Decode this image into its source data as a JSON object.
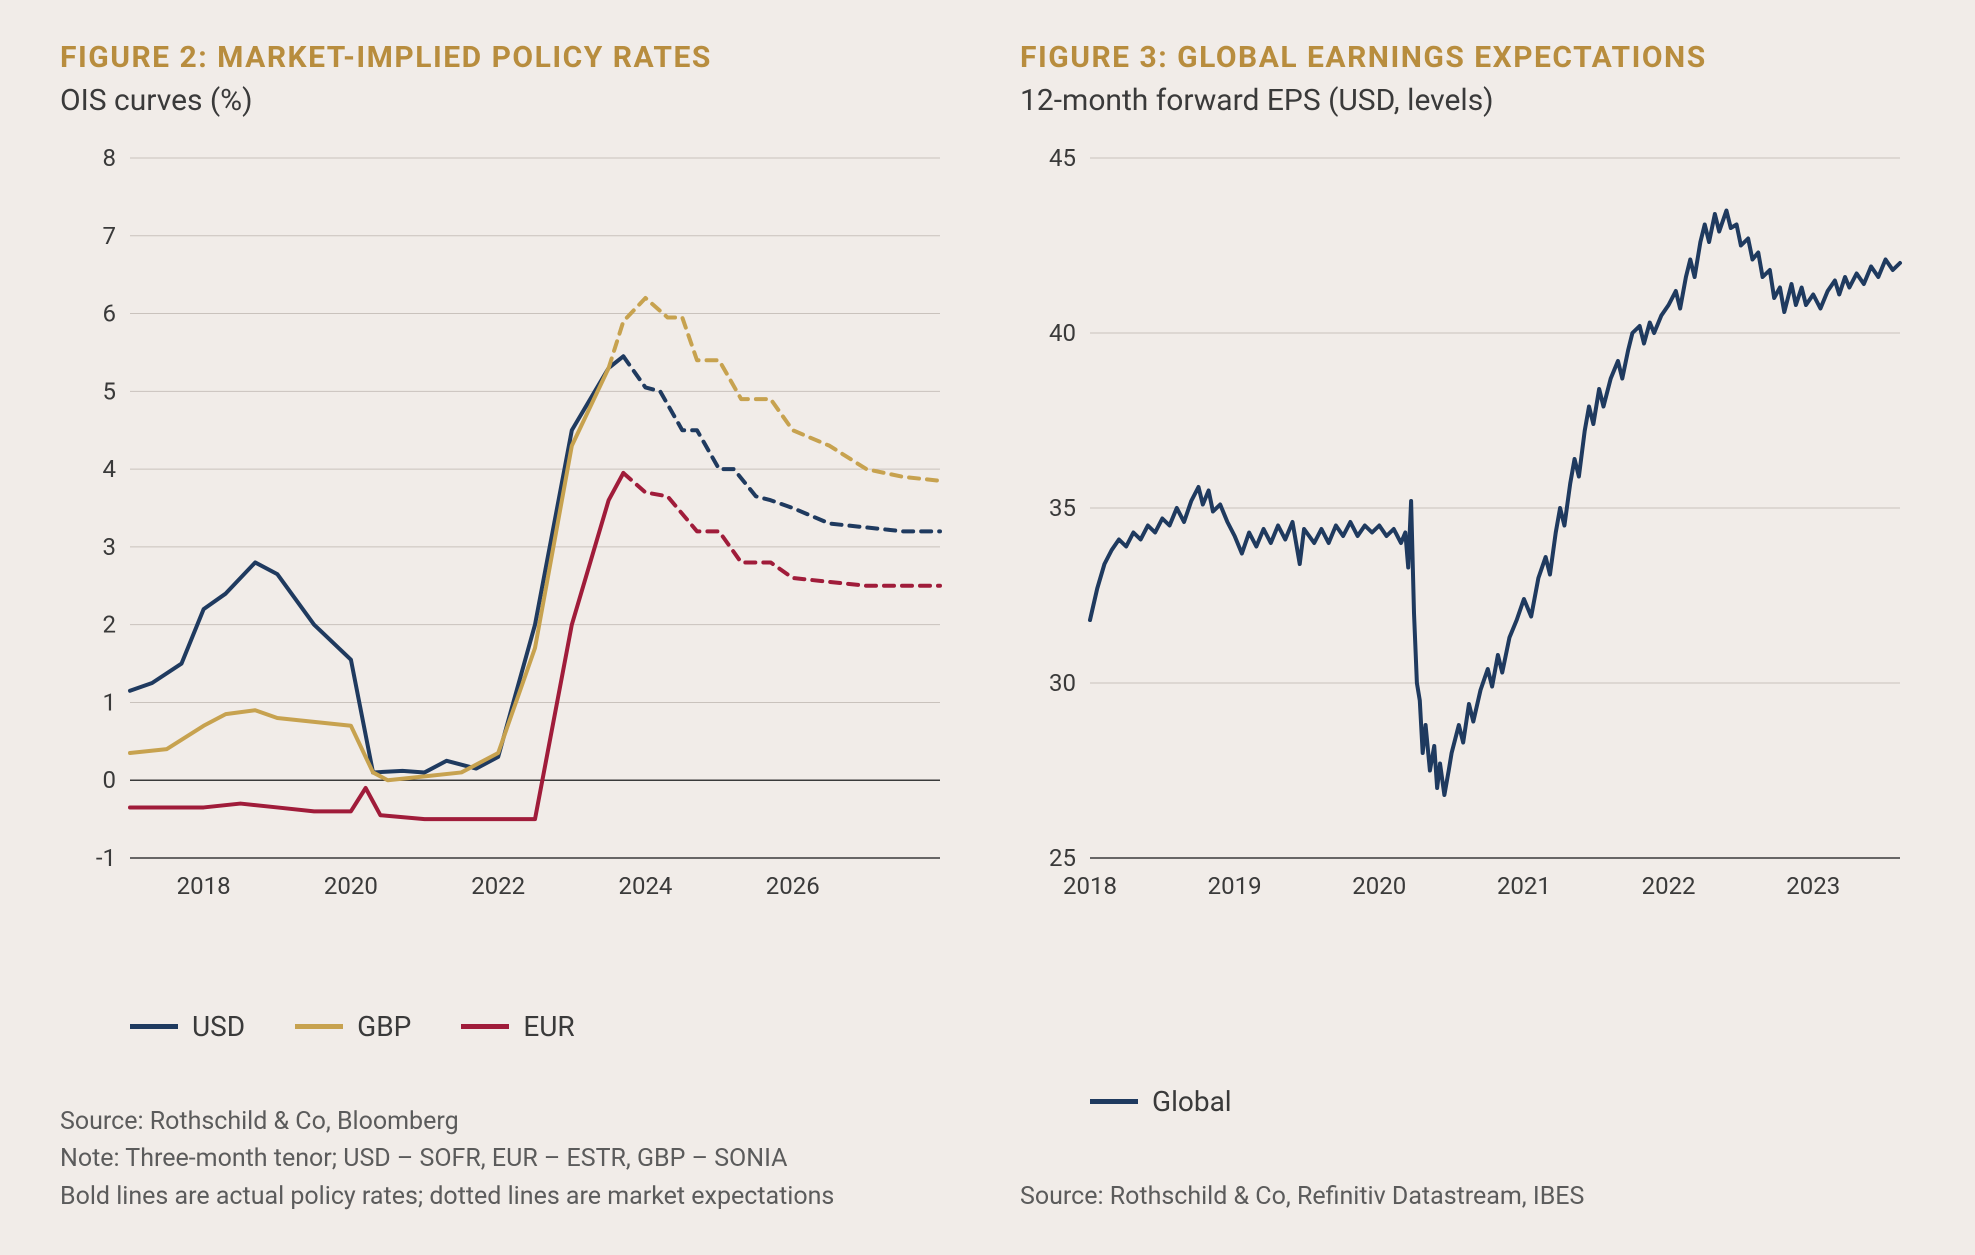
{
  "background_color": "#f1ece8",
  "title_color": "#b88d3e",
  "text_color": "#3a3a3a",
  "footnote_color": "#5b5b5b",
  "grid_color": "#c9c2bc",
  "figure2": {
    "title": "FIGURE 2: MARKET-IMPLIED POLICY RATES",
    "subtitle": "OIS curves (%)",
    "type": "line",
    "ylim": [
      -1,
      8
    ],
    "ytick_step": 1,
    "yticks": [
      -1,
      0,
      1,
      2,
      3,
      4,
      5,
      6,
      7,
      8
    ],
    "xlim": [
      2017,
      2028
    ],
    "xticks": [
      2018,
      2020,
      2022,
      2024,
      2026
    ],
    "line_width": 4,
    "dash_pattern": "10 8",
    "series": [
      {
        "label": "USD",
        "color": "#1f3a5f",
        "solid": [
          [
            2017.0,
            1.15
          ],
          [
            2017.3,
            1.25
          ],
          [
            2017.7,
            1.5
          ],
          [
            2018.0,
            2.2
          ],
          [
            2018.3,
            2.4
          ],
          [
            2018.7,
            2.8
          ],
          [
            2019.0,
            2.65
          ],
          [
            2019.5,
            2.0
          ],
          [
            2020.0,
            1.55
          ],
          [
            2020.3,
            0.1
          ],
          [
            2020.7,
            0.12
          ],
          [
            2021.0,
            0.1
          ],
          [
            2021.3,
            0.25
          ],
          [
            2021.7,
            0.15
          ],
          [
            2022.0,
            0.3
          ],
          [
            2022.5,
            2.0
          ],
          [
            2023.0,
            4.5
          ],
          [
            2023.5,
            5.3
          ],
          [
            2023.7,
            5.45
          ]
        ],
        "dashed": [
          [
            2023.7,
            5.45
          ],
          [
            2024.0,
            5.05
          ],
          [
            2024.2,
            5.0
          ],
          [
            2024.5,
            4.5
          ],
          [
            2024.7,
            4.5
          ],
          [
            2025.0,
            4.0
          ],
          [
            2025.2,
            4.0
          ],
          [
            2025.5,
            3.65
          ],
          [
            2025.7,
            3.6
          ],
          [
            2026.0,
            3.5
          ],
          [
            2026.5,
            3.3
          ],
          [
            2027.0,
            3.25
          ],
          [
            2027.5,
            3.2
          ],
          [
            2028.0,
            3.2
          ]
        ]
      },
      {
        "label": "GBP",
        "color": "#c7a24f",
        "solid": [
          [
            2017.0,
            0.35
          ],
          [
            2017.5,
            0.4
          ],
          [
            2018.0,
            0.7
          ],
          [
            2018.3,
            0.85
          ],
          [
            2018.7,
            0.9
          ],
          [
            2019.0,
            0.8
          ],
          [
            2019.5,
            0.75
          ],
          [
            2020.0,
            0.7
          ],
          [
            2020.3,
            0.1
          ],
          [
            2020.5,
            0.0
          ],
          [
            2021.0,
            0.05
          ],
          [
            2021.5,
            0.1
          ],
          [
            2022.0,
            0.35
          ],
          [
            2022.5,
            1.7
          ],
          [
            2023.0,
            4.3
          ],
          [
            2023.5,
            5.3
          ]
        ],
        "dashed": [
          [
            2023.5,
            5.3
          ],
          [
            2023.7,
            5.9
          ],
          [
            2024.0,
            6.2
          ],
          [
            2024.3,
            5.95
          ],
          [
            2024.5,
            5.95
          ],
          [
            2024.7,
            5.4
          ],
          [
            2025.0,
            5.4
          ],
          [
            2025.3,
            4.9
          ],
          [
            2025.7,
            4.9
          ],
          [
            2026.0,
            4.5
          ],
          [
            2026.5,
            4.3
          ],
          [
            2027.0,
            4.0
          ],
          [
            2027.5,
            3.9
          ],
          [
            2028.0,
            3.85
          ]
        ]
      },
      {
        "label": "EUR",
        "color": "#a01c3a",
        "solid": [
          [
            2017.0,
            -0.35
          ],
          [
            2017.5,
            -0.35
          ],
          [
            2018.0,
            -0.35
          ],
          [
            2018.5,
            -0.3
          ],
          [
            2019.0,
            -0.35
          ],
          [
            2019.5,
            -0.4
          ],
          [
            2020.0,
            -0.4
          ],
          [
            2020.2,
            -0.1
          ],
          [
            2020.4,
            -0.45
          ],
          [
            2021.0,
            -0.5
          ],
          [
            2021.5,
            -0.5
          ],
          [
            2022.0,
            -0.5
          ],
          [
            2022.5,
            -0.5
          ],
          [
            2023.0,
            2.0
          ],
          [
            2023.5,
            3.6
          ],
          [
            2023.7,
            3.95
          ]
        ],
        "dashed": [
          [
            2023.7,
            3.95
          ],
          [
            2024.0,
            3.7
          ],
          [
            2024.3,
            3.65
          ],
          [
            2024.7,
            3.2
          ],
          [
            2025.0,
            3.2
          ],
          [
            2025.3,
            2.8
          ],
          [
            2025.7,
            2.8
          ],
          [
            2026.0,
            2.6
          ],
          [
            2026.5,
            2.55
          ],
          [
            2027.0,
            2.5
          ],
          [
            2027.5,
            2.5
          ],
          [
            2028.0,
            2.5
          ]
        ]
      }
    ],
    "legend": [
      "USD",
      "GBP",
      "EUR"
    ],
    "source": "Source: Rothschild & Co, Bloomberg",
    "note1": "Note: Three-month tenor; USD – SOFR, EUR – ESTR, GBP – SONIA",
    "note2": "Bold lines are actual policy rates; dotted lines are market expectations"
  },
  "figure3": {
    "title": "FIGURE 3: GLOBAL EARNINGS EXPECTATIONS",
    "subtitle": "12-month forward EPS (USD, levels)",
    "type": "line",
    "ylim": [
      25,
      45
    ],
    "ytick_step": 5,
    "yticks": [
      25,
      30,
      35,
      40,
      45
    ],
    "xlim": [
      2018,
      2023.6
    ],
    "xticks": [
      2018,
      2019,
      2020,
      2021,
      2022,
      2023
    ],
    "line_width": 3,
    "series": [
      {
        "label": "Global",
        "color": "#1f3a5f",
        "points": [
          [
            2018.0,
            31.8
          ],
          [
            2018.05,
            32.7
          ],
          [
            2018.1,
            33.4
          ],
          [
            2018.15,
            33.8
          ],
          [
            2018.2,
            34.1
          ],
          [
            2018.25,
            33.9
          ],
          [
            2018.3,
            34.3
          ],
          [
            2018.35,
            34.1
          ],
          [
            2018.4,
            34.5
          ],
          [
            2018.45,
            34.3
          ],
          [
            2018.5,
            34.7
          ],
          [
            2018.55,
            34.5
          ],
          [
            2018.6,
            35.0
          ],
          [
            2018.65,
            34.6
          ],
          [
            2018.7,
            35.2
          ],
          [
            2018.75,
            35.6
          ],
          [
            2018.78,
            35.1
          ],
          [
            2018.82,
            35.5
          ],
          [
            2018.85,
            34.9
          ],
          [
            2018.9,
            35.1
          ],
          [
            2018.95,
            34.6
          ],
          [
            2019.0,
            34.2
          ],
          [
            2019.05,
            33.7
          ],
          [
            2019.1,
            34.3
          ],
          [
            2019.15,
            33.9
          ],
          [
            2019.2,
            34.4
          ],
          [
            2019.25,
            34.0
          ],
          [
            2019.3,
            34.5
          ],
          [
            2019.35,
            34.1
          ],
          [
            2019.4,
            34.6
          ],
          [
            2019.45,
            33.4
          ],
          [
            2019.48,
            34.4
          ],
          [
            2019.55,
            34.0
          ],
          [
            2019.6,
            34.4
          ],
          [
            2019.65,
            34.0
          ],
          [
            2019.7,
            34.5
          ],
          [
            2019.75,
            34.2
          ],
          [
            2019.8,
            34.6
          ],
          [
            2019.85,
            34.2
          ],
          [
            2019.9,
            34.5
          ],
          [
            2019.95,
            34.3
          ],
          [
            2020.0,
            34.5
          ],
          [
            2020.05,
            34.2
          ],
          [
            2020.1,
            34.4
          ],
          [
            2020.15,
            34.0
          ],
          [
            2020.18,
            34.3
          ],
          [
            2020.2,
            33.3
          ],
          [
            2020.22,
            35.2
          ],
          [
            2020.24,
            32.0
          ],
          [
            2020.26,
            30.0
          ],
          [
            2020.28,
            29.5
          ],
          [
            2020.3,
            28.0
          ],
          [
            2020.32,
            28.8
          ],
          [
            2020.35,
            27.5
          ],
          [
            2020.38,
            28.2
          ],
          [
            2020.4,
            27.0
          ],
          [
            2020.42,
            27.7
          ],
          [
            2020.45,
            26.8
          ],
          [
            2020.48,
            27.5
          ],
          [
            2020.5,
            28.0
          ],
          [
            2020.55,
            28.8
          ],
          [
            2020.58,
            28.3
          ],
          [
            2020.62,
            29.4
          ],
          [
            2020.65,
            28.9
          ],
          [
            2020.7,
            29.8
          ],
          [
            2020.75,
            30.4
          ],
          [
            2020.78,
            29.9
          ],
          [
            2020.82,
            30.8
          ],
          [
            2020.85,
            30.3
          ],
          [
            2020.9,
            31.3
          ],
          [
            2020.95,
            31.8
          ],
          [
            2021.0,
            32.4
          ],
          [
            2021.05,
            31.9
          ],
          [
            2021.1,
            33.0
          ],
          [
            2021.15,
            33.6
          ],
          [
            2021.18,
            33.1
          ],
          [
            2021.22,
            34.3
          ],
          [
            2021.25,
            35.0
          ],
          [
            2021.28,
            34.5
          ],
          [
            2021.32,
            35.7
          ],
          [
            2021.35,
            36.4
          ],
          [
            2021.38,
            35.9
          ],
          [
            2021.42,
            37.2
          ],
          [
            2021.45,
            37.9
          ],
          [
            2021.48,
            37.4
          ],
          [
            2021.52,
            38.4
          ],
          [
            2021.55,
            37.9
          ],
          [
            2021.6,
            38.7
          ],
          [
            2021.65,
            39.2
          ],
          [
            2021.68,
            38.7
          ],
          [
            2021.72,
            39.5
          ],
          [
            2021.75,
            40.0
          ],
          [
            2021.8,
            40.2
          ],
          [
            2021.83,
            39.7
          ],
          [
            2021.87,
            40.3
          ],
          [
            2021.9,
            40.0
          ],
          [
            2021.95,
            40.5
          ],
          [
            2022.0,
            40.8
          ],
          [
            2022.05,
            41.2
          ],
          [
            2022.08,
            40.7
          ],
          [
            2022.12,
            41.6
          ],
          [
            2022.15,
            42.1
          ],
          [
            2022.18,
            41.6
          ],
          [
            2022.22,
            42.6
          ],
          [
            2022.25,
            43.1
          ],
          [
            2022.28,
            42.6
          ],
          [
            2022.32,
            43.4
          ],
          [
            2022.35,
            42.9
          ],
          [
            2022.4,
            43.5
          ],
          [
            2022.43,
            43.0
          ],
          [
            2022.47,
            43.1
          ],
          [
            2022.5,
            42.5
          ],
          [
            2022.55,
            42.7
          ],
          [
            2022.58,
            42.1
          ],
          [
            2022.62,
            42.3
          ],
          [
            2022.65,
            41.6
          ],
          [
            2022.7,
            41.8
          ],
          [
            2022.73,
            41.0
          ],
          [
            2022.77,
            41.3
          ],
          [
            2022.8,
            40.6
          ],
          [
            2022.85,
            41.4
          ],
          [
            2022.88,
            40.8
          ],
          [
            2022.92,
            41.3
          ],
          [
            2022.95,
            40.8
          ],
          [
            2023.0,
            41.1
          ],
          [
            2023.05,
            40.7
          ],
          [
            2023.1,
            41.2
          ],
          [
            2023.15,
            41.5
          ],
          [
            2023.18,
            41.1
          ],
          [
            2023.22,
            41.6
          ],
          [
            2023.25,
            41.3
          ],
          [
            2023.3,
            41.7
          ],
          [
            2023.35,
            41.4
          ],
          [
            2023.4,
            41.9
          ],
          [
            2023.45,
            41.6
          ],
          [
            2023.5,
            42.1
          ],
          [
            2023.55,
            41.8
          ],
          [
            2023.6,
            42.0
          ]
        ]
      }
    ],
    "legend": [
      "Global"
    ],
    "source": "Source: Rothschild & Co, Refinitiv Datastream, IBES"
  }
}
